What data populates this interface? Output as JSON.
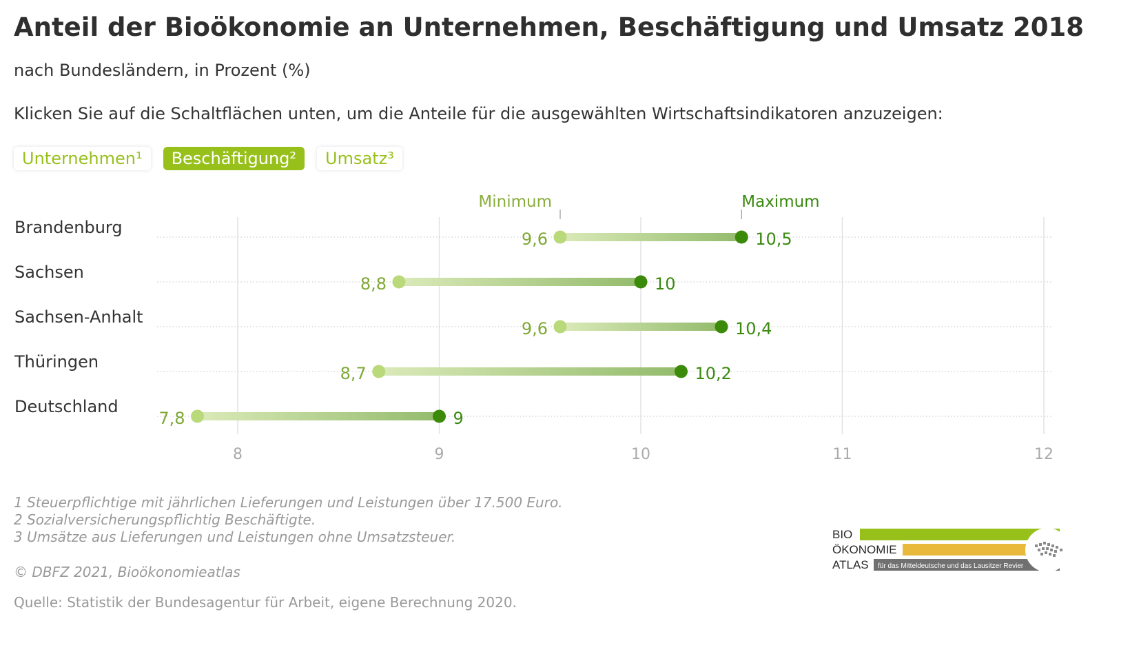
{
  "header": {
    "title": "Anteil der Bioökonomie an Unternehmen, Beschäftigung und Umsatz 2018",
    "subtitle": "nach Bundesländern, in Prozent (%)",
    "instruction": "Klicken Sie auf die Schaltflächen unten, um die Anteile für die ausgewählten Wirtschaftsindikatoren anzuzeigen:"
  },
  "buttons": [
    {
      "label": "Unternehmen¹",
      "active": false
    },
    {
      "label": "Beschäftigung²",
      "active": true
    },
    {
      "label": "Umsatz³",
      "active": false
    }
  ],
  "colors": {
    "min_dot": "#b9d97a",
    "max_dot": "#3c8a0a",
    "min_label": "#7ea836",
    "max_label": "#3a8a10",
    "button_accent": "#98c01b",
    "gridline": "#e2e2e2",
    "axis_text": "#aaaaaa"
  },
  "chart_data": {
    "type": "dumbbell",
    "legend_min": "Minimum",
    "legend_max": "Maximum",
    "xlim": [
      7.6,
      12.05
    ],
    "x_ticks": [
      8,
      9,
      10,
      11,
      12
    ],
    "categories": [
      "Brandenburg",
      "Sachsen",
      "Sachsen-Anhalt",
      "Thüringen",
      "Deutschland"
    ],
    "series": [
      {
        "name": "Minimum",
        "values": [
          9.6,
          8.8,
          9.6,
          8.7,
          7.8
        ],
        "labels": [
          "9,6",
          "8,8",
          "9,6",
          "8,7",
          "7,8"
        ]
      },
      {
        "name": "Maximum",
        "values": [
          10.5,
          10.0,
          10.4,
          10.2,
          9.0
        ],
        "labels": [
          "10,5",
          "10",
          "10,4",
          "10,2",
          "9"
        ]
      }
    ]
  },
  "footnotes": [
    "1 Steuerpflichtige mit jährlichen Lieferungen und Leistungen über 17.500 Euro.",
    "2 Sozialversicherungspflichtig Beschäftigte.",
    "3 Umsätze aus Lieferungen und Leistungen ohne Umsatzsteuer."
  ],
  "copyright": "© DBFZ 2021, Bioökonomieatlas",
  "source": "Quelle: Statistik der Bundesagentur für Arbeit, eigene Berechnung 2020.",
  "logo": {
    "line1": "BIO",
    "line2": "ÖKONOMIE",
    "line3": "ATLAS",
    "tagline": "für das Mitteldeutsche und das Lausitzer Revier",
    "colors": {
      "bar1": "#98c01b",
      "bar2": "#e8b93a",
      "bar3": "#707070"
    }
  }
}
